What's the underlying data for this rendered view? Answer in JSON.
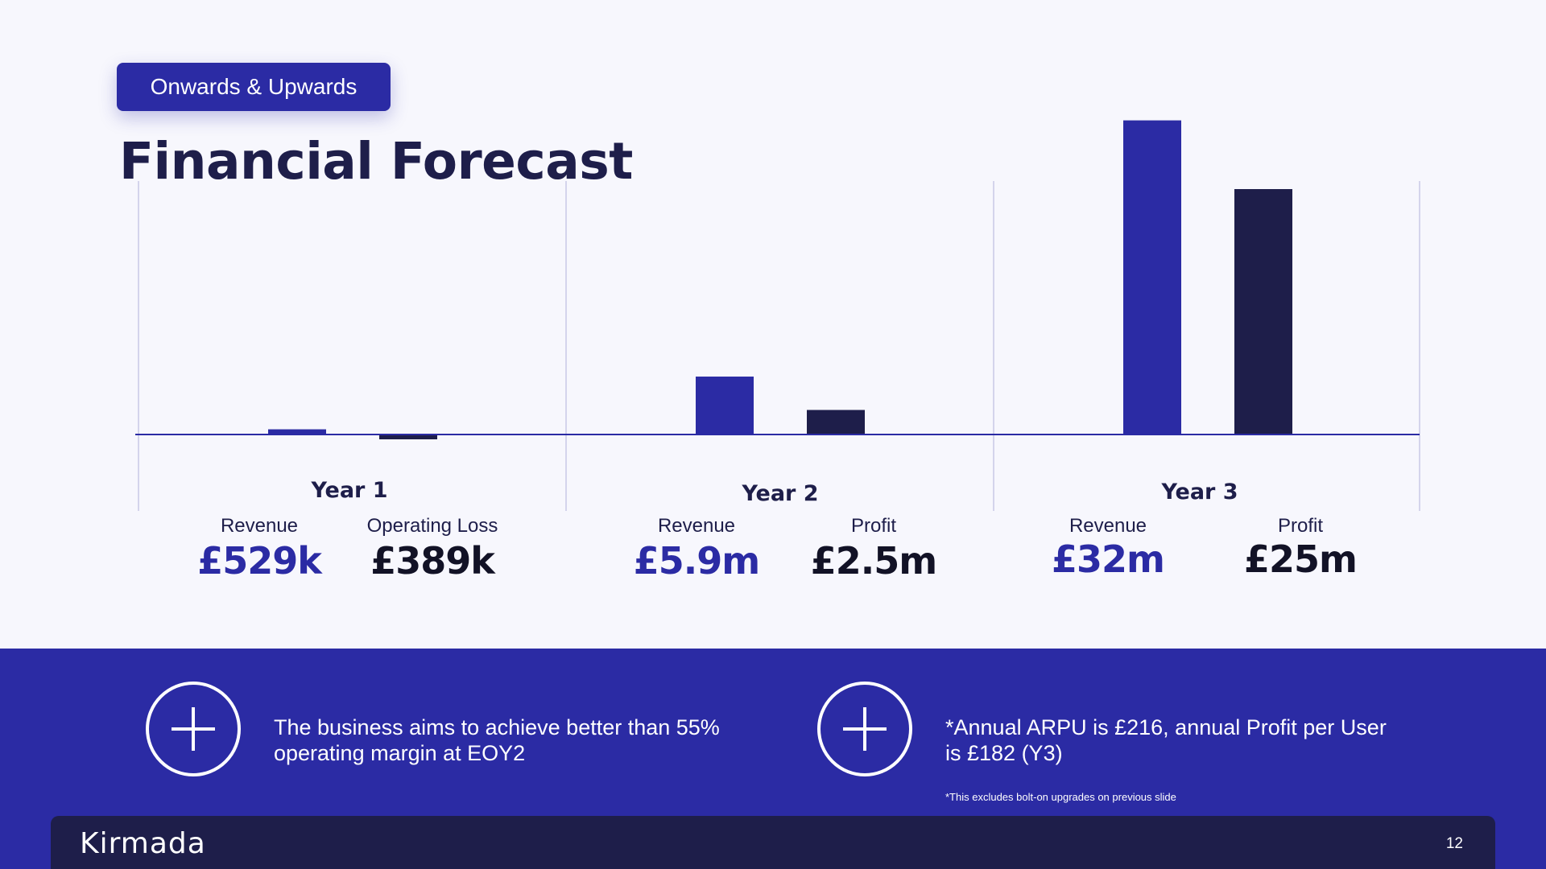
{
  "header": {
    "tag": "Onwards & Upwards",
    "title": "Financial Forecast"
  },
  "chart_data": {
    "type": "bar",
    "categories": [
      "Year 1",
      "Year 2",
      "Year 3"
    ],
    "series": [
      {
        "name": "Revenue",
        "values": [
          0.529,
          5.9,
          32
        ]
      },
      {
        "name": "Profit",
        "values": [
          -0.389,
          2.5,
          25
        ]
      }
    ],
    "metric_labels": [
      [
        "Revenue",
        "Operating Loss"
      ],
      [
        "Revenue",
        "Profit"
      ],
      [
        "Revenue",
        "Profit"
      ]
    ],
    "value_labels": [
      [
        "£529k",
        "£389k"
      ],
      [
        "£5.9m",
        "£2.5m"
      ],
      [
        "£32m",
        "£25m"
      ]
    ],
    "title": "",
    "xlabel": "",
    "ylabel": "",
    "ylim": [
      -0.5,
      32
    ],
    "grid": false,
    "colors": {
      "revenue": "#2b2ba4",
      "profit": "#1e1e4a",
      "axis": "#2b2ba4",
      "divider": "#c9c9e6"
    }
  },
  "notes": [
    {
      "icon": "plus-circle-icon",
      "text": "The business aims to achieve better than  55% operating margin at EOY2"
    },
    {
      "icon": "plus-circle-icon",
      "text": "*Annual ARPU is £216, annual Profit per User is £182 (Y3)"
    }
  ],
  "footnote": "*This excludes bolt-on upgrades on previous slide",
  "footer": {
    "logo_text": "Kirmada",
    "page_number": "12"
  },
  "colors": {
    "brand_blue": "#2b2ba4",
    "navy": "#1e1e4a",
    "background": "#f7f7fd",
    "logo_accent": "#f2a23a"
  }
}
